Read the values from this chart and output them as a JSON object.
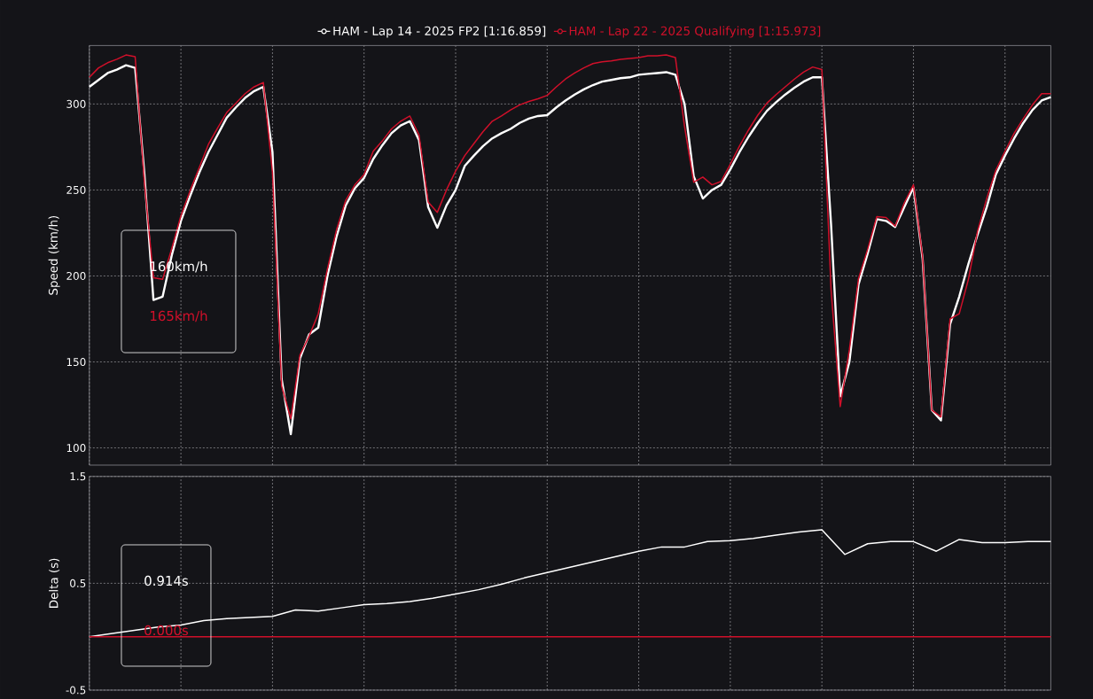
{
  "chart_data": [
    {
      "type": "line",
      "categories": [
        null,
        null,
        null,
        null,
        null,
        null,
        null,
        null,
        null,
        null,
        null,
        null,
        null,
        null,
        null,
        null,
        null,
        null,
        null,
        null,
        null,
        null,
        null,
        null,
        null,
        null,
        null,
        null,
        null,
        null,
        null,
        null,
        null,
        null,
        null,
        null,
        null,
        null,
        null,
        null,
        null,
        null,
        null,
        null,
        null,
        null,
        null,
        null,
        null,
        null,
        null,
        null,
        null,
        null,
        null,
        null,
        null,
        null,
        null,
        null,
        null,
        null,
        null,
        null,
        null,
        null,
        null,
        null,
        null,
        null,
        null,
        null,
        null,
        null,
        null,
        null,
        null,
        null,
        null,
        null,
        null,
        null,
        null,
        null,
        null,
        null,
        null,
        null,
        null,
        null,
        null,
        null,
        null,
        null,
        null,
        null,
        null,
        null,
        null,
        null,
        null,
        null,
        null,
        null,
        null,
        null
      ],
      "ylabel": "Speed (km/h)",
      "ylim": [
        90,
        334
      ],
      "yticks": [
        100,
        150,
        200,
        250,
        300
      ],
      "grid": true,
      "legend": "top",
      "tick_labels": "y",
      "annotations": [
        "160km/h",
        "165km/h"
      ],
      "series": [
        {
          "name": "HAM - Lap 14 - 2025 FP2 [1:16.859]",
          "color": "#ffffff",
          "values": [
            310,
            314,
            318,
            320,
            322.5,
            321,
            260,
            186,
            188,
            212,
            232,
            246.5,
            260,
            272,
            282,
            292,
            298,
            303.5,
            307.5,
            310,
            272,
            140,
            108,
            152,
            166,
            170,
            200,
            223,
            241,
            251,
            257,
            268,
            276,
            283,
            287.5,
            290,
            279,
            240,
            228,
            241,
            250,
            264,
            270,
            275.5,
            280,
            283,
            285.5,
            289,
            291.5,
            293,
            293.5,
            298,
            302,
            305.5,
            308.5,
            311,
            313,
            314,
            315,
            315.5,
            317,
            317.5,
            318,
            318.5,
            317,
            300,
            258,
            245,
            250,
            253,
            262,
            272,
            281,
            289,
            296,
            301,
            305.5,
            309.5,
            313,
            315.5,
            315.5,
            230,
            130,
            150,
            195,
            213,
            233,
            232,
            228.5,
            240,
            251.5,
            210,
            122,
            116,
            172,
            188,
            207,
            224,
            240,
            259,
            270,
            280,
            289,
            296.5,
            302,
            304
          ]
        },
        {
          "name": "HAM - Lap 22 - 2025 Qualifying [1:15.973]",
          "color": "#d0102a",
          "values": [
            315.5,
            321,
            324,
            326,
            328.5,
            327.5,
            255,
            199,
            198,
            216,
            235,
            249.5,
            263,
            276.5,
            286,
            295,
            300.5,
            306,
            310,
            312.5,
            260,
            136,
            117,
            154,
            165,
            178,
            204,
            227,
            244,
            253,
            259,
            272.5,
            278.5,
            285.5,
            290,
            293,
            282,
            243,
            237,
            250,
            261,
            270,
            277,
            284,
            290,
            293,
            296.5,
            299.5,
            301.5,
            303,
            305,
            310,
            314.5,
            318,
            321,
            323.5,
            324.5,
            325,
            326,
            326.5,
            327,
            328,
            328,
            328.5,
            327,
            287,
            254.5,
            257.5,
            253,
            255,
            265,
            275.5,
            285,
            293.5,
            300.5,
            305.5,
            310,
            314.5,
            318.5,
            321.5,
            320,
            192,
            124,
            157,
            198.5,
            215.5,
            234.5,
            234,
            229,
            242.5,
            253,
            211,
            122,
            118,
            175,
            178,
            198,
            226,
            245,
            261.5,
            272.5,
            283,
            291.5,
            299.5,
            306,
            306
          ]
        }
      ]
    },
    {
      "type": "line",
      "categories": [
        null,
        null,
        null,
        null,
        null,
        null,
        null,
        null,
        null,
        null,
        null,
        null,
        null,
        null,
        null,
        null,
        null,
        null,
        null,
        null,
        null,
        null,
        null,
        null,
        null,
        null,
        null,
        null,
        null,
        null,
        null,
        null,
        null,
        null,
        null,
        null,
        null,
        null,
        null,
        null,
        null,
        null,
        null
      ],
      "ylabel": "Delta (s)",
      "ylim": [
        -0.5,
        1.5
      ],
      "yticks": [
        -0.5,
        0.5,
        1.5
      ],
      "grid": true,
      "tick_labels": "y",
      "annotations": [
        "0.914s",
        "0.000s"
      ],
      "ref_lines": [
        {
          "axis": "y",
          "value": 0,
          "color": "#d0102a"
        }
      ],
      "series": [
        {
          "color": "#ffffff",
          "values": [
            0,
            0.03,
            0.06,
            0.09,
            0.11,
            0.15,
            0.17,
            0.18,
            0.19,
            0.25,
            0.24,
            0.27,
            0.3,
            0.31,
            0.33,
            0.36,
            0.4,
            0.44,
            0.49,
            0.55,
            0.6,
            0.65,
            0.7,
            0.75,
            0.8,
            0.84,
            0.84,
            0.89,
            0.9,
            0.92,
            0.95,
            0.98,
            1.0,
            0.77,
            0.87,
            0.89,
            0.89,
            0.8,
            0.91,
            0.88,
            0.88,
            0.89,
            0.89
          ]
        }
      ]
    }
  ]
}
